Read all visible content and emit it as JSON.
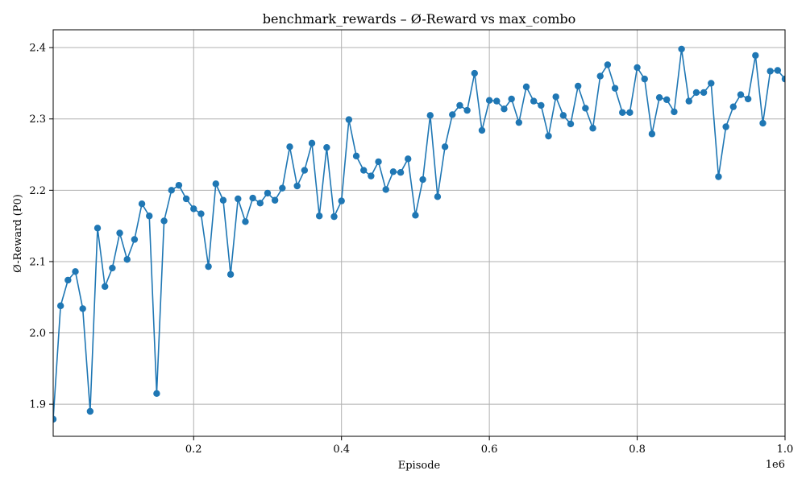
{
  "chart_data": {
    "type": "line",
    "title": "benchmark_rewards – Ø-Reward vs max_combo",
    "xlabel": "Episode",
    "ylabel": "Ø-Reward (P0)",
    "x_offset_label": "1e6",
    "xlim": [
      0.01,
      1.0
    ],
    "ylim": [
      1.855,
      2.425
    ],
    "xticks": [
      0.2,
      0.4,
      0.6,
      0.8,
      1.0
    ],
    "xtick_labels": [
      "0.2",
      "0.4",
      "0.6",
      "0.8",
      "1.0"
    ],
    "yticks": [
      1.9,
      2.0,
      2.1,
      2.2,
      2.3,
      2.4
    ],
    "ytick_labels": [
      "1.9",
      "2.0",
      "2.1",
      "2.2",
      "2.3",
      "2.4"
    ],
    "grid": true,
    "color": "#1f77b4",
    "x": [
      0.01,
      0.02,
      0.03,
      0.04,
      0.05,
      0.06,
      0.07,
      0.08,
      0.09,
      0.1,
      0.11,
      0.12,
      0.13,
      0.14,
      0.15,
      0.16,
      0.17,
      0.18,
      0.19,
      0.2,
      0.21,
      0.22,
      0.23,
      0.24,
      0.25,
      0.26,
      0.27,
      0.28,
      0.29,
      0.3,
      0.31,
      0.32,
      0.33,
      0.34,
      0.35,
      0.36,
      0.37,
      0.38,
      0.39,
      0.4,
      0.41,
      0.42,
      0.43,
      0.44,
      0.45,
      0.46,
      0.47,
      0.48,
      0.49,
      0.5,
      0.51,
      0.52,
      0.53,
      0.54,
      0.55,
      0.56,
      0.57,
      0.58,
      0.59,
      0.6,
      0.61,
      0.62,
      0.63,
      0.64,
      0.65,
      0.66,
      0.67,
      0.68,
      0.69,
      0.7,
      0.71,
      0.72,
      0.73,
      0.74,
      0.75,
      0.76,
      0.77,
      0.78,
      0.79,
      0.8,
      0.81,
      0.82,
      0.83,
      0.84,
      0.85,
      0.86,
      0.87,
      0.88,
      0.89,
      0.9,
      0.91,
      0.92,
      0.93,
      0.94,
      0.95,
      0.96,
      0.97,
      0.98,
      0.99,
      1.0
    ],
    "y": [
      1.879,
      2.038,
      2.074,
      2.086,
      2.034,
      1.89,
      2.147,
      2.065,
      2.091,
      2.14,
      2.103,
      2.131,
      2.181,
      2.164,
      1.915,
      2.157,
      2.2,
      2.207,
      2.188,
      2.174,
      2.167,
      2.093,
      2.209,
      2.186,
      2.082,
      2.188,
      2.156,
      2.189,
      2.182,
      2.196,
      2.186,
      2.203,
      2.261,
      2.206,
      2.228,
      2.266,
      2.164,
      2.26,
      2.163,
      2.185,
      2.299,
      2.248,
      2.228,
      2.22,
      2.24,
      2.201,
      2.226,
      2.225,
      2.244,
      2.165,
      2.215,
      2.305,
      2.191,
      2.261,
      2.306,
      2.319,
      2.312,
      2.364,
      2.284,
      2.326,
      2.325,
      2.314,
      2.328,
      2.295,
      2.345,
      2.325,
      2.319,
      2.276,
      2.331,
      2.305,
      2.293,
      2.346,
      2.315,
      2.287,
      2.36,
      2.376,
      2.343,
      2.309,
      2.309,
      2.372,
      2.356,
      2.279,
      2.33,
      2.327,
      2.31,
      2.398,
      2.325,
      2.337,
      2.337,
      2.35,
      2.219,
      2.289,
      2.317,
      2.334,
      2.328,
      2.389,
      2.294,
      2.367,
      2.368,
      2.356
    ]
  }
}
